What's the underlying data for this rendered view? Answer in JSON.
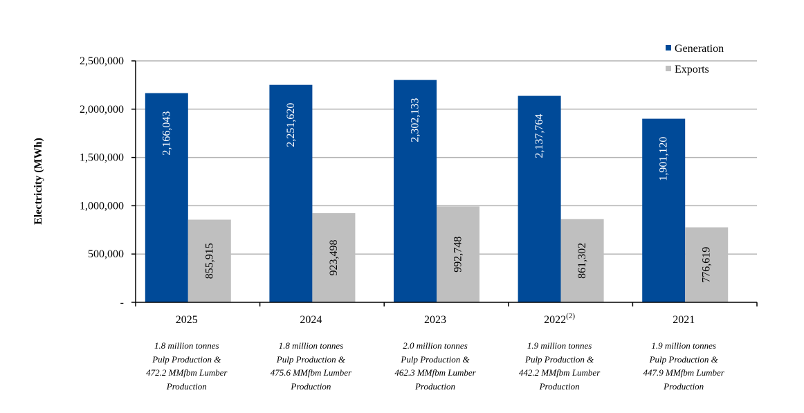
{
  "chart_data": {
    "type": "bar",
    "title": "",
    "xlabel": "",
    "ylabel": "Electricity (MWh)",
    "ylim": [
      0,
      2500000
    ],
    "yticks": [
      0,
      500000,
      1000000,
      1500000,
      2000000,
      2500000
    ],
    "ytick_labels": [
      "-",
      "500,000",
      "1,000,000",
      "1,500,000",
      "2,000,000",
      "2,500,000"
    ],
    "grid": true,
    "legend_position": "top-right",
    "categories": [
      "2025",
      "2024",
      "2023",
      "2022",
      "2021"
    ],
    "category_superscripts": [
      "",
      "",
      "",
      "(2)",
      ""
    ],
    "series": [
      {
        "name": "Generation",
        "color": "#004a98",
        "label_color": "#ffffff",
        "values": [
          2166043,
          2251620,
          2302133,
          2137764,
          1901120
        ],
        "labels": [
          "2,166,043",
          "2,251,620",
          "2,302,133",
          "2,137,764",
          "1,901,120"
        ]
      },
      {
        "name": "Exports",
        "color": "#bfbfbf",
        "label_color": "#000000",
        "values": [
          855915,
          923498,
          992748,
          861302,
          776619
        ],
        "labels": [
          "855,915",
          "923,498",
          "992,748",
          "861,302",
          "776,619"
        ]
      }
    ],
    "annotations": [
      [
        "1.8 million tonnes",
        "Pulp Production &",
        "472.2 MMfbm Lumber",
        "Production"
      ],
      [
        "1.8 million tonnes",
        "Pulp Production &",
        "475.6 MMfbm Lumber",
        "Production"
      ],
      [
        "2.0 million tonnes",
        "Pulp Production &",
        "462.3 MMfbm Lumber",
        "Production"
      ],
      [
        "1.9 million tonnes",
        "Pulp Production &",
        "442.2 MMfbm Lumber",
        "Production"
      ],
      [
        "1.9 million tonnes",
        "Pulp Production &",
        "447.9 MMfbm Lumber",
        "Production"
      ]
    ],
    "colors": {
      "grid": "#b3b3b3",
      "axis": "#000000"
    }
  }
}
